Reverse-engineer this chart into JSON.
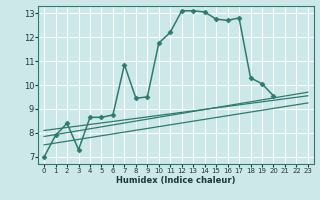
{
  "xlabel": "Humidex (Indice chaleur)",
  "bg_color": "#cce8e8",
  "grid_color": "#ffffff",
  "line_color": "#2e7b6e",
  "xlim": [
    -0.5,
    23.5
  ],
  "ylim": [
    6.7,
    13.3
  ],
  "xticks": [
    0,
    1,
    2,
    3,
    4,
    5,
    6,
    7,
    8,
    9,
    10,
    11,
    12,
    13,
    14,
    15,
    16,
    17,
    18,
    19,
    20,
    21,
    22,
    23
  ],
  "yticks": [
    7,
    8,
    9,
    10,
    11,
    12,
    13
  ],
  "series": [
    {
      "x": [
        0,
        1,
        2,
        3,
        4,
        5,
        6,
        7,
        8,
        9,
        10,
        11,
        12,
        13,
        14,
        15,
        16,
        17,
        18,
        19,
        20
      ],
      "y": [
        7.0,
        7.9,
        8.4,
        7.3,
        8.65,
        8.65,
        8.75,
        10.85,
        9.45,
        9.5,
        11.75,
        12.2,
        13.1,
        13.1,
        13.05,
        12.75,
        12.7,
        12.8,
        10.3,
        10.05,
        9.55
      ],
      "marker": "D",
      "markersize": 2.5,
      "linewidth": 1.1
    },
    {
      "x": [
        0,
        23
      ],
      "y": [
        8.1,
        9.55
      ],
      "marker": null,
      "linewidth": 0.9
    },
    {
      "x": [
        0,
        23
      ],
      "y": [
        7.85,
        9.7
      ],
      "marker": null,
      "linewidth": 0.9
    },
    {
      "x": [
        0,
        23
      ],
      "y": [
        7.5,
        9.25
      ],
      "marker": null,
      "linewidth": 0.9
    }
  ]
}
